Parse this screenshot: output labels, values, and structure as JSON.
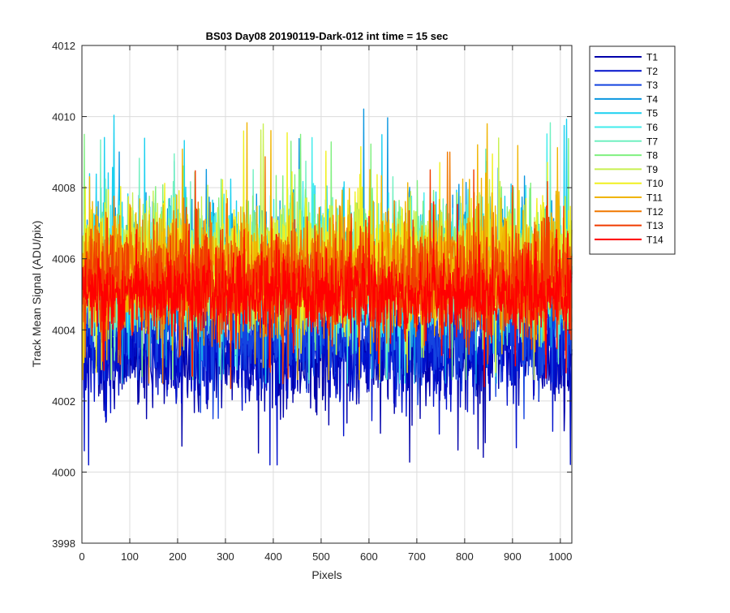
{
  "chart_data": {
    "type": "line",
    "title": "BS03 Day08 20190119-Dark-012 int time = 15 sec",
    "xlabel": "Pixels",
    "ylabel": "Track Mean Signal (ADU/pix)",
    "xlim": [
      0,
      1024
    ],
    "ylim": [
      3998,
      4012
    ],
    "xticks": [
      0,
      100,
      200,
      300,
      400,
      500,
      600,
      700,
      800,
      900,
      1000
    ],
    "yticks": [
      3998,
      4000,
      4002,
      4004,
      4006,
      4008,
      4010,
      4012
    ],
    "grid": true,
    "legend_position": "outside-right",
    "n_points": 1024,
    "series": [
      {
        "name": "T1",
        "color": "#0000aa",
        "mean": 4003.3,
        "spread": 0.75,
        "min": 3999.8,
        "max": 4005.9
      },
      {
        "name": "T2",
        "color": "#0010cc",
        "mean": 4003.5,
        "spread": 0.7,
        "min": 4000.2,
        "max": 4006.2
      },
      {
        "name": "T3",
        "color": "#1444e0",
        "mean": 4004.0,
        "spread": 0.7,
        "min": 4001.5,
        "max": 4007.0
      },
      {
        "name": "T4",
        "color": "#0a96e0",
        "mean": 4005.6,
        "spread": 0.95,
        "min": 4002.5,
        "max": 4010.5
      },
      {
        "name": "T5",
        "color": "#1ad0f0",
        "mean": 4005.7,
        "spread": 0.9,
        "min": 4002.5,
        "max": 4010.2
      },
      {
        "name": "T6",
        "color": "#40ecec",
        "mean": 4005.6,
        "spread": 0.9,
        "min": 4002.5,
        "max": 4009.8
      },
      {
        "name": "T7",
        "color": "#70f0c0",
        "mean": 4005.7,
        "spread": 0.85,
        "min": 4002.6,
        "max": 4011.4
      },
      {
        "name": "T8",
        "color": "#80f080",
        "mean": 4005.8,
        "spread": 0.85,
        "min": 4002.6,
        "max": 4009.5
      },
      {
        "name": "T9",
        "color": "#c8f050",
        "mean": 4005.8,
        "spread": 0.85,
        "min": 4002.6,
        "max": 4009.8
      },
      {
        "name": "T10",
        "color": "#f0f020",
        "mean": 4005.9,
        "spread": 0.85,
        "min": 4002.8,
        "max": 4009.8
      },
      {
        "name": "T11",
        "color": "#f0b400",
        "mean": 4005.7,
        "spread": 0.85,
        "min": 4002.6,
        "max": 4010.5
      },
      {
        "name": "T12",
        "color": "#f07800",
        "mean": 4005.5,
        "spread": 0.8,
        "min": 4002.5,
        "max": 4009.0
      },
      {
        "name": "T13",
        "color": "#f03c00",
        "mean": 4005.3,
        "spread": 0.75,
        "min": 4002.2,
        "max": 4008.5
      },
      {
        "name": "T14",
        "color": "#ff0000",
        "mean": 4005.0,
        "spread": 0.55,
        "min": 4002.4,
        "max": 4007.6
      }
    ]
  }
}
